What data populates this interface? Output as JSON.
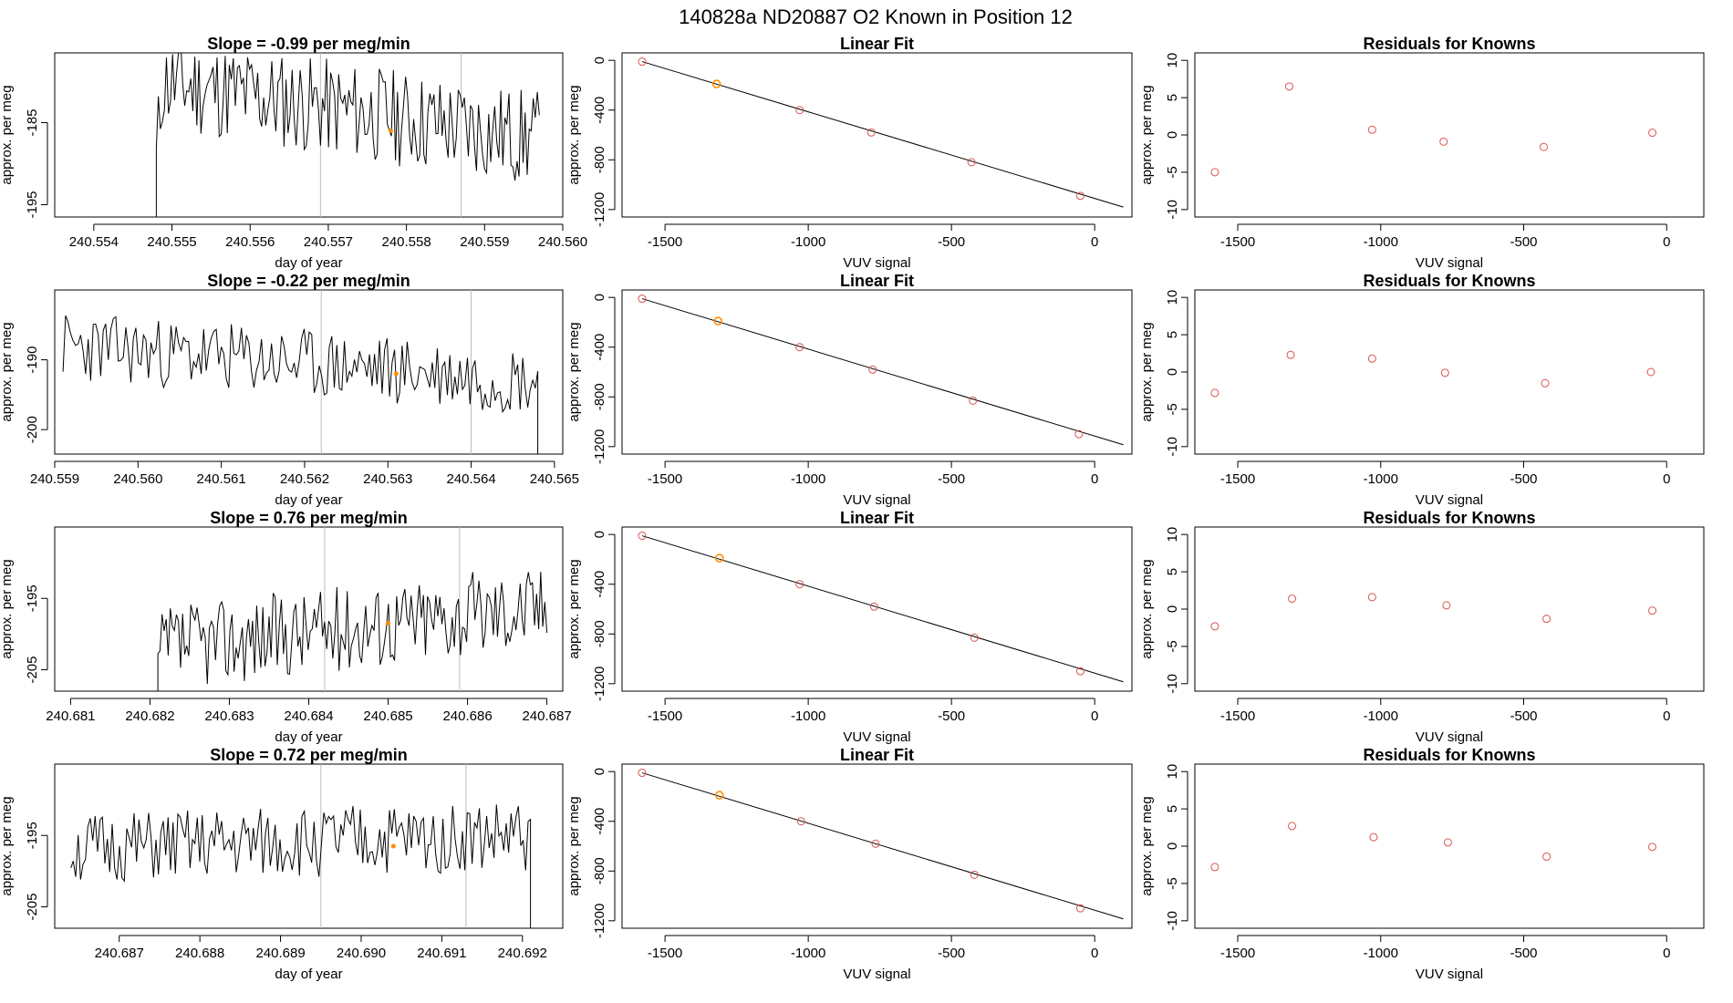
{
  "page_title": "140828a     ND20887   O2 Known in Position  12",
  "colors": {
    "line": "#000000",
    "fit_points": "#d9534f",
    "highlight": "#ff8c00",
    "vline": "#bdbdbd"
  },
  "common": {
    "time_xlabel": "day of year",
    "ylabel": "approx. per meg",
    "fit_title": "Linear Fit",
    "fit_xlabel": "VUV signal",
    "resid_title": "Residuals for Knowns",
    "resid_xlabel": "VUV signal"
  },
  "chart_data": [
    {
      "type": "line",
      "panel": "row1-timeseries",
      "title": "Slope =  -0.99  per meg/min",
      "xlabel": "day of year",
      "ylabel": "approx. per meg",
      "xlim": [
        240.5535,
        240.56
      ],
      "ylim": [
        -196.5,
        -176.5
      ],
      "xticks": [
        240.554,
        240.555,
        240.556,
        240.557,
        240.558,
        240.559,
        240.56
      ],
      "xtick_labels": [
        "240.554",
        "240.555",
        "240.556",
        "240.557",
        "240.558",
        "240.559",
        "240.560"
      ],
      "yticks": [
        -185,
        -195
      ],
      "ytick_labels": [
        "-185",
        "-195"
      ],
      "t_start": 240.5548,
      "t_end": 240.5597,
      "vlines": [
        240.5569,
        240.5587
      ],
      "highlight": {
        "x": 240.5578,
        "y": -186.0
      },
      "start_y": -197,
      "start_value": -190,
      "level_from": -180,
      "level_to": -187,
      "noise": 6,
      "seed": 11,
      "end_drop": null
    },
    {
      "type": "line",
      "panel": "row2-timeseries",
      "title": "Slope =  -0.22  per meg/min",
      "xlabel": "day of year",
      "ylabel": "approx. per meg",
      "xlim": [
        240.559,
        240.5651
      ],
      "ylim": [
        -203.5,
        -180
      ],
      "xticks": [
        240.559,
        240.56,
        240.561,
        240.562,
        240.563,
        240.564,
        240.565
      ],
      "xtick_labels": [
        "240.559",
        "240.560",
        "240.561",
        "240.562",
        "240.563",
        "240.564",
        "240.565"
      ],
      "yticks": [
        -190,
        -200
      ],
      "ytick_labels": [
        "-190",
        "-200"
      ],
      "t_start": 240.5591,
      "t_end": 240.5648,
      "vlines": [
        240.5622,
        240.564
      ],
      "highlight": {
        "x": 240.5631,
        "y": -192.0
      },
      "start_y": null,
      "start_value": null,
      "level_from": -188,
      "level_to": -193,
      "noise": 5,
      "seed": 23,
      "end_drop": -204
    },
    {
      "type": "line",
      "panel": "row3-timeseries",
      "title": "Slope =  0.76  per meg/min",
      "xlabel": "day of year",
      "ylabel": "approx. per meg",
      "xlim": [
        240.6808,
        240.6872
      ],
      "ylim": [
        -208,
        -185
      ],
      "xticks": [
        240.681,
        240.682,
        240.683,
        240.684,
        240.685,
        240.686,
        240.687
      ],
      "xtick_labels": [
        "240.681",
        "240.682",
        "240.683",
        "240.684",
        "240.685",
        "240.686",
        "240.687"
      ],
      "yticks": [
        -195,
        -205
      ],
      "ytick_labels": [
        "-195",
        "-205"
      ],
      "t_start": 240.6821,
      "t_end": 240.687,
      "vlines": [
        240.6842,
        240.6859
      ],
      "highlight": {
        "x": 240.685,
        "y": -198.5
      },
      "start_y": -209,
      "start_value": -205,
      "level_from": -202,
      "level_to": -196,
      "noise": 6,
      "seed": 37,
      "end_drop": null
    },
    {
      "type": "line",
      "panel": "row4-timeseries",
      "title": "Slope =  0.72  per meg/min",
      "xlabel": "day of year",
      "ylabel": "approx. per meg",
      "xlim": [
        240.6862,
        240.6925
      ],
      "ylim": [
        -208,
        -185
      ],
      "xticks": [
        240.687,
        240.688,
        240.689,
        240.69,
        240.691,
        240.692
      ],
      "xtick_labels": [
        "240.687",
        "240.688",
        "240.689",
        "240.690",
        "240.691",
        "240.692"
      ],
      "yticks": [
        -195,
        -205
      ],
      "ytick_labels": [
        "-195",
        "-205"
      ],
      "t_start": 240.6864,
      "t_end": 240.6921,
      "vlines": [
        240.6895,
        240.6913
      ],
      "highlight": {
        "x": 240.6904,
        "y": -196.5
      },
      "start_y": null,
      "start_value": null,
      "level_from": -197,
      "level_to": -195,
      "noise": 5,
      "seed": 51,
      "end_drop": -209
    },
    {
      "type": "scatter",
      "panel": "row1-linear-fit",
      "title": "Linear Fit",
      "xlabel": "VUV signal",
      "ylabel": "approx. per meg",
      "xlim": [
        -1650,
        130
      ],
      "ylim": [
        -1260,
        60
      ],
      "xticks": [
        -1500,
        -1000,
        -500,
        0
      ],
      "xtick_labels": [
        "-1500",
        "-1000",
        "-500",
        "0"
      ],
      "yticks": [
        0,
        -400,
        -800,
        -1200
      ],
      "ytick_labels": [
        "0",
        "-400",
        "-800",
        "-1200"
      ],
      "x": [
        -1580,
        -1320,
        -1030,
        -780,
        -430,
        -50
      ],
      "y": [
        -10,
        -190,
        -400,
        -580,
        -820,
        -1090
      ],
      "highlight_index": 1,
      "fit_line": {
        "x": [
          -1580,
          100
        ],
        "y": [
          -10,
          -1180
        ]
      }
    },
    {
      "type": "scatter",
      "panel": "row2-linear-fit",
      "title": "Linear Fit",
      "xlabel": "VUV signal",
      "ylabel": "approx. per meg",
      "xlim": [
        -1650,
        130
      ],
      "ylim": [
        -1260,
        60
      ],
      "xticks": [
        -1500,
        -1000,
        -500,
        0
      ],
      "xtick_labels": [
        "-1500",
        "-1000",
        "-500",
        "0"
      ],
      "yticks": [
        0,
        -400,
        -800,
        -1200
      ],
      "ytick_labels": [
        "0",
        -400,
        "-800",
        "-1200"
      ],
      "x": [
        -1580,
        -1315,
        -1030,
        -775,
        -425,
        -55
      ],
      "y": [
        -10,
        -190,
        -400,
        -580,
        -830,
        -1100
      ],
      "highlight_index": 1,
      "fit_line": {
        "x": [
          -1580,
          100
        ],
        "y": [
          -10,
          -1185
        ]
      }
    },
    {
      "type": "scatter",
      "panel": "row3-linear-fit",
      "title": "Linear Fit",
      "xlabel": "VUV signal",
      "ylabel": "approx. per meg",
      "xlim": [
        -1650,
        130
      ],
      "ylim": [
        -1260,
        60
      ],
      "xticks": [
        -1500,
        -1000,
        -500,
        0
      ],
      "xtick_labels": [
        "-1500",
        "-1000",
        "-500",
        "0"
      ],
      "yticks": [
        0,
        -400,
        -800,
        -1200
      ],
      "ytick_labels": [
        "0",
        "-400",
        "-800",
        "-1200"
      ],
      "x": [
        -1580,
        -1310,
        -1030,
        -770,
        -420,
        -50
      ],
      "y": [
        -10,
        -190,
        -400,
        -580,
        -830,
        -1100
      ],
      "highlight_index": 1,
      "fit_line": {
        "x": [
          -1580,
          100
        ],
        "y": [
          -10,
          -1185
        ]
      }
    },
    {
      "type": "scatter",
      "panel": "row4-linear-fit",
      "title": "Linear Fit",
      "xlabel": "VUV signal",
      "ylabel": "approx. per meg",
      "xlim": [
        -1650,
        130
      ],
      "ylim": [
        -1260,
        60
      ],
      "xticks": [
        -1500,
        -1000,
        -500,
        0
      ],
      "xtick_labels": [
        "-1500",
        "-1000",
        "-500",
        "0"
      ],
      "yticks": [
        0,
        -400,
        -800,
        -1200
      ],
      "ytick_labels": [
        "0",
        "-400",
        "-800",
        "-1200"
      ],
      "x": [
        -1580,
        -1310,
        -1025,
        -765,
        -420,
        -50
      ],
      "y": [
        -10,
        -190,
        -400,
        -580,
        -830,
        -1100
      ],
      "highlight_index": 1,
      "fit_line": {
        "x": [
          -1580,
          100
        ],
        "y": [
          -10,
          -1185
        ]
      }
    },
    {
      "type": "scatter",
      "panel": "row1-residuals",
      "title": "Residuals for Knowns",
      "xlabel": "VUV signal",
      "ylabel": "approx. per meg",
      "xlim": [
        -1650,
        130
      ],
      "ylim": [
        -11,
        11
      ],
      "xticks": [
        -1500,
        -1000,
        -500,
        0
      ],
      "xtick_labels": [
        "-1500",
        "-1000",
        "-500",
        "0"
      ],
      "yticks": [
        10,
        5,
        0,
        -5,
        -10
      ],
      "ytick_labels": [
        "10",
        "5",
        "0",
        "-5",
        "-10"
      ],
      "x": [
        -1580,
        -1320,
        -1030,
        -780,
        -430,
        -50
      ],
      "y": [
        -5.0,
        6.5,
        0.7,
        -0.9,
        -1.6,
        0.3
      ]
    },
    {
      "type": "scatter",
      "panel": "row2-residuals",
      "title": "Residuals for Knowns",
      "xlabel": "VUV signal",
      "ylabel": "approx. per meg",
      "xlim": [
        -1650,
        130
      ],
      "ylim": [
        -11,
        11
      ],
      "xticks": [
        -1500,
        -1000,
        -500,
        0
      ],
      "xtick_labels": [
        "-1500",
        "-1000",
        "-500",
        "0"
      ],
      "yticks": [
        10,
        5,
        0,
        -5,
        -10
      ],
      "ytick_labels": [
        "10",
        "5",
        "0",
        "-5",
        "-10"
      ],
      "x": [
        -1580,
        -1315,
        -1030,
        -775,
        -425,
        -55
      ],
      "y": [
        -2.8,
        2.3,
        1.8,
        -0.1,
        -1.5,
        0.0
      ]
    },
    {
      "type": "scatter",
      "panel": "row3-residuals",
      "title": "Residuals for Knowns",
      "xlabel": "VUV signal",
      "ylabel": "approx. per meg",
      "xlim": [
        -1650,
        130
      ],
      "ylim": [
        -11,
        11
      ],
      "xticks": [
        -1500,
        -1000,
        -500,
        0
      ],
      "xtick_labels": [
        "-1500",
        "-1000",
        "-500",
        "0"
      ],
      "yticks": [
        10,
        5,
        0,
        -5,
        -10
      ],
      "ytick_labels": [
        "10",
        "5",
        "0",
        "-5",
        "-10"
      ],
      "x": [
        -1580,
        -1310,
        -1030,
        -770,
        -420,
        -50
      ],
      "y": [
        -2.3,
        1.4,
        1.6,
        0.5,
        -1.3,
        -0.2
      ]
    },
    {
      "type": "scatter",
      "panel": "row4-residuals",
      "title": "Residuals for Knowns",
      "xlabel": "VUV signal",
      "ylabel": "approx. per meg",
      "xlim": [
        -1650,
        130
      ],
      "ylim": [
        -11,
        11
      ],
      "xticks": [
        -1500,
        -1000,
        -500,
        0
      ],
      "xtick_labels": [
        "-1500",
        "-1000",
        "-500",
        "0"
      ],
      "yticks": [
        10,
        5,
        0,
        -5,
        -10
      ],
      "ytick_labels": [
        "10",
        "5",
        "0",
        "-5",
        "-10"
      ],
      "x": [
        -1580,
        -1310,
        -1025,
        -765,
        -420,
        -50
      ],
      "y": [
        -2.8,
        2.7,
        1.2,
        0.5,
        -1.4,
        -0.1
      ]
    }
  ]
}
